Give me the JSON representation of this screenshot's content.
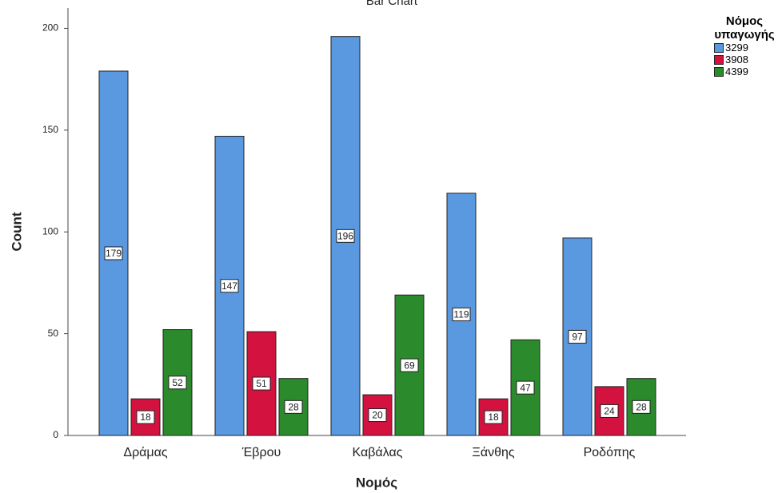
{
  "chart_data": {
    "type": "grouped_bar",
    "title": "Bar Chart",
    "x_label": "Νομός",
    "y_label": "Count",
    "categories": [
      "Δράμας",
      "Έβρου",
      "Καβάλας",
      "Ξάνθης",
      "Ροδόπης"
    ],
    "legend_title": "Νόμος υπαγωγής",
    "series": [
      {
        "name": "3299",
        "color": "#5a98e0",
        "values": [
          179,
          147,
          196,
          119,
          97
        ]
      },
      {
        "name": "3908",
        "color": "#d41240",
        "values": [
          18,
          51,
          20,
          18,
          24
        ]
      },
      {
        "name": "4399",
        "color": "#2b8a2b",
        "values": [
          52,
          28,
          69,
          47,
          28
        ]
      }
    ],
    "ylim": [
      0,
      210
    ],
    "yticks": [
      0,
      50,
      100,
      150,
      200
    ]
  }
}
